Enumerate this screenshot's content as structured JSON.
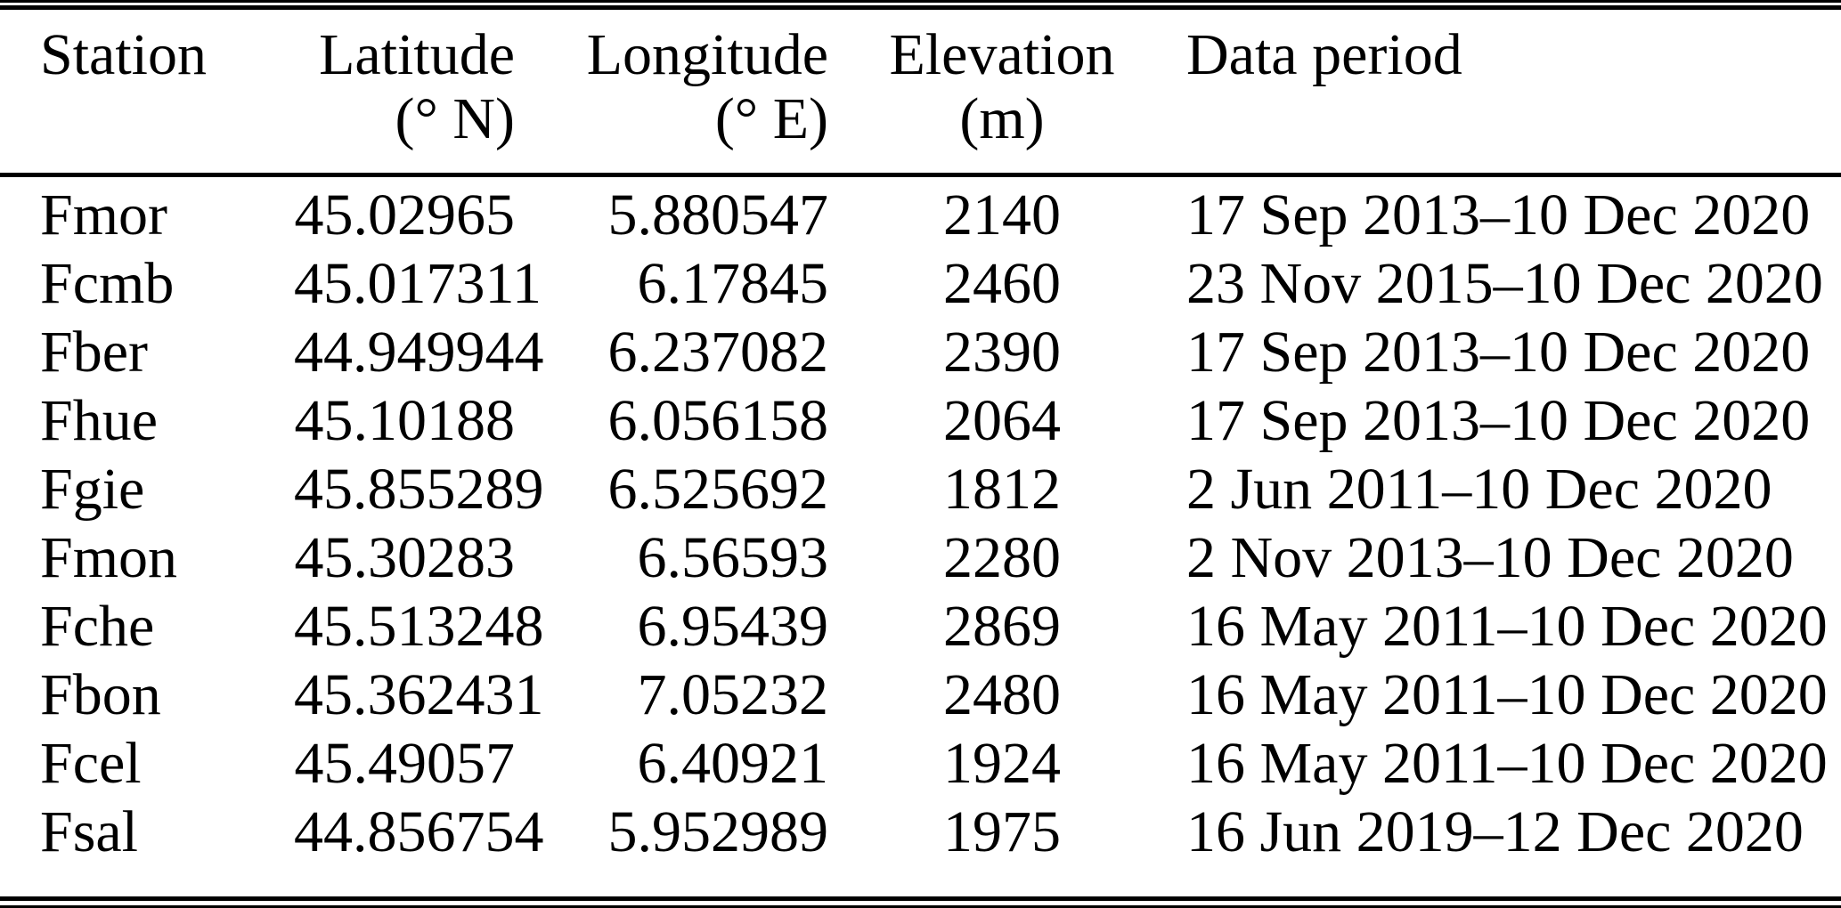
{
  "page": {
    "background": "#ffffff",
    "text_color": "#000000",
    "rule_color": "#000000"
  },
  "table": {
    "headers": [
      {
        "label": "Station",
        "unit": ""
      },
      {
        "label": "Latitude",
        "unit": "(° N)"
      },
      {
        "label": "Longitude",
        "unit": "(° E)"
      },
      {
        "label": "Elevation",
        "unit": "(m)"
      },
      {
        "label": "Data period",
        "unit": ""
      }
    ],
    "rows": [
      {
        "station": "Fmor",
        "latitude": "45.02965",
        "longitude": "5.880547",
        "elevation": "2140",
        "data_period": "17 Sep 2013–10 Dec 2020"
      },
      {
        "station": "Fcmb",
        "latitude": "45.017311",
        "longitude": "6.17845",
        "elevation": "2460",
        "data_period": "23 Nov 2015–10 Dec 2020"
      },
      {
        "station": "Fber",
        "latitude": "44.949944",
        "longitude": "6.237082",
        "elevation": "2390",
        "data_period": "17 Sep 2013–10 Dec 2020"
      },
      {
        "station": "Fhue",
        "latitude": "45.10188",
        "longitude": "6.056158",
        "elevation": "2064",
        "data_period": "17 Sep 2013–10 Dec 2020"
      },
      {
        "station": "Fgie",
        "latitude": "45.855289",
        "longitude": "6.525692",
        "elevation": "1812",
        "data_period": "2 Jun 2011–10 Dec 2020"
      },
      {
        "station": "Fmon",
        "latitude": "45.30283",
        "longitude": "6.56593",
        "elevation": "2280",
        "data_period": "2 Nov 2013–10 Dec 2020"
      },
      {
        "station": "Fche",
        "latitude": "45.513248",
        "longitude": "6.95439",
        "elevation": "2869",
        "data_period": "16 May 2011–10 Dec 2020"
      },
      {
        "station": "Fbon",
        "latitude": "45.362431",
        "longitude": "7.05232",
        "elevation": "2480",
        "data_period": "16 May 2011–10 Dec 2020"
      },
      {
        "station": "Fcel",
        "latitude": "45.49057",
        "longitude": "6.40921",
        "elevation": "1924",
        "data_period": "16 May 2011–10 Dec 2020"
      },
      {
        "station": "Fsal",
        "latitude": "44.856754",
        "longitude": "5.952989",
        "elevation": "1975",
        "data_period": "16 Jun 2019–12 Dec 2020"
      }
    ]
  }
}
